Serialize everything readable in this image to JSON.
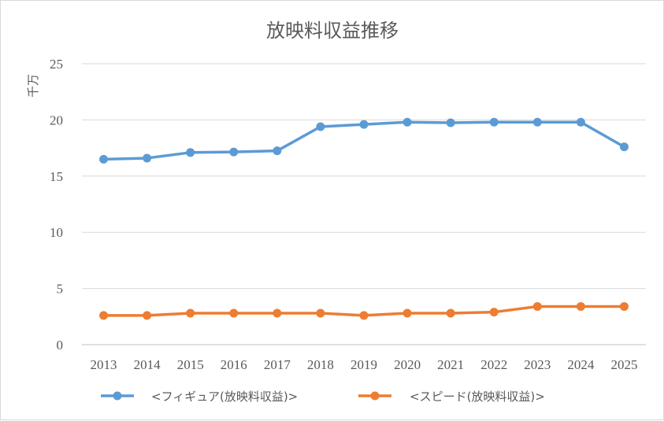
{
  "chart_data": {
    "type": "line",
    "title": "放映料収益推移",
    "ylabel": "千万",
    "xlabel": "",
    "ylim": [
      0,
      25
    ],
    "yticks": [
      0,
      5,
      10,
      15,
      20,
      25
    ],
    "grid": true,
    "legend_position": "bottom",
    "categories": [
      "2013",
      "2014",
      "2015",
      "2016",
      "2017",
      "2018",
      "2019",
      "2020",
      "2021",
      "2022",
      "2023",
      "2024",
      "2025"
    ],
    "series": [
      {
        "name": "<フィギュア(放映料収益)>",
        "color": "#5b9bd5",
        "values": [
          16.5,
          16.6,
          17.1,
          17.15,
          17.25,
          19.4,
          19.6,
          19.8,
          19.75,
          19.8,
          19.8,
          19.8,
          17.6
        ]
      },
      {
        "name": "<スピード(放映料収益)>",
        "color": "#ed7d31",
        "values": [
          2.6,
          2.6,
          2.8,
          2.8,
          2.8,
          2.8,
          2.6,
          2.8,
          2.8,
          2.9,
          3.4,
          3.4,
          3.4
        ]
      }
    ]
  }
}
